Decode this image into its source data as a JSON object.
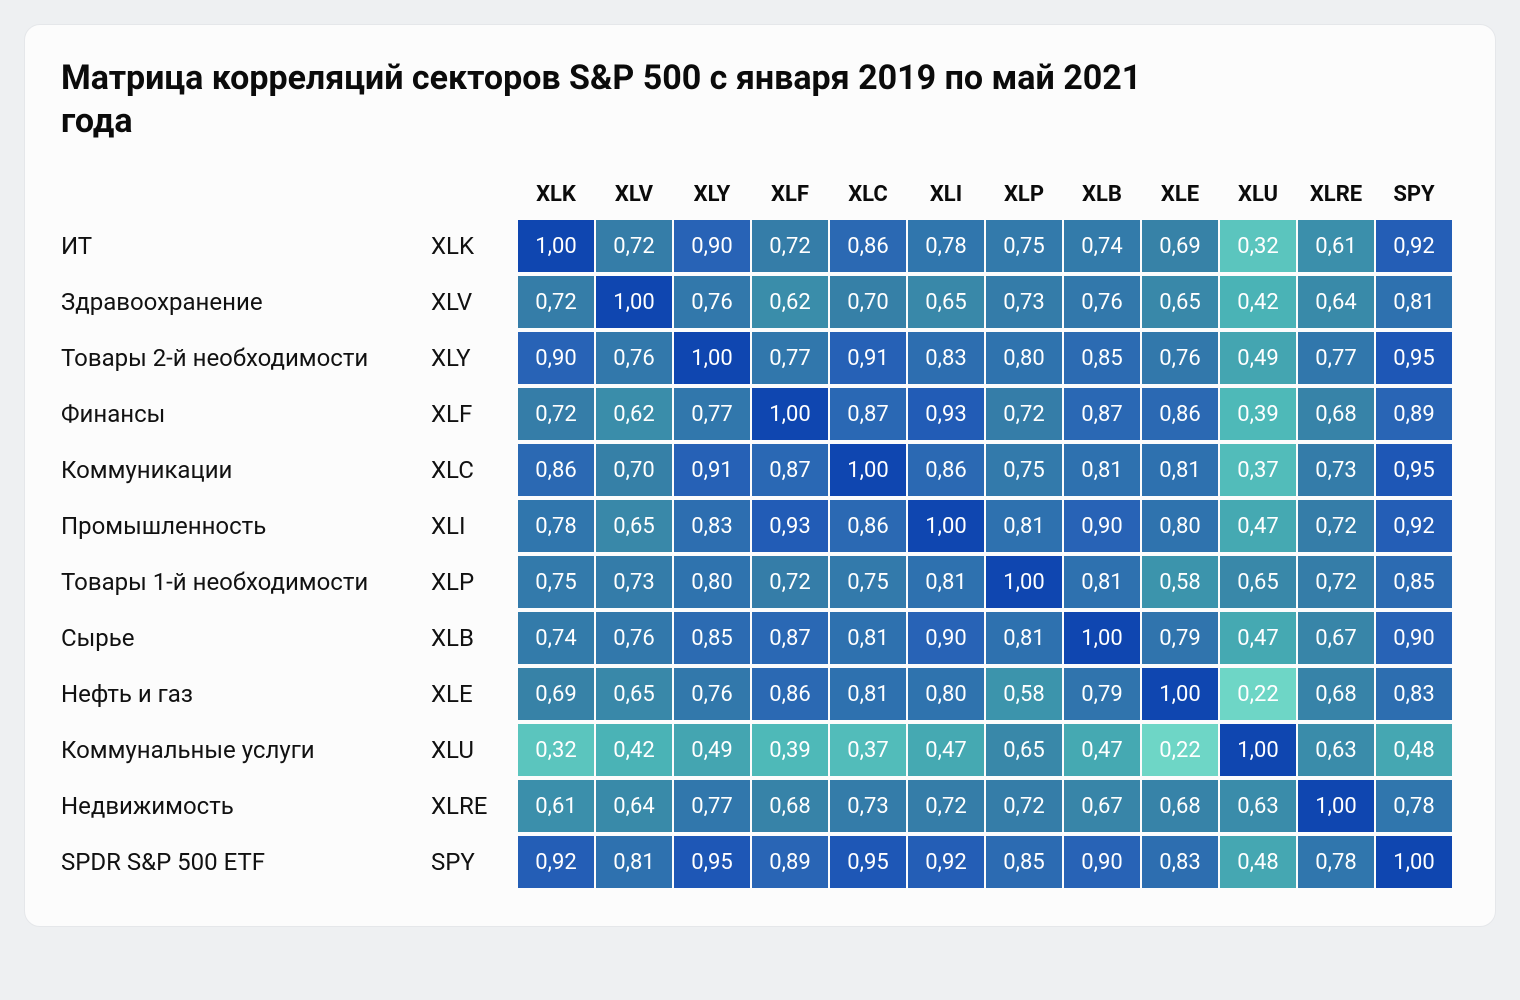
{
  "title": "Матрица корреляций секторов S&P 500 с января 2019 по май 2021 года",
  "heatmap": {
    "type": "heatmap",
    "cell_text_color": "#ffffff",
    "title_fontsize": 34,
    "header_fontsize": 22,
    "label_fontsize": 24,
    "cell_fontsize": 22,
    "background_color": "#fcfcfc",
    "card_border_color": "#e5e7ea",
    "value_decimal_separator": ",",
    "value_precision": 2,
    "color_scale": {
      "min": 0.0,
      "max": 1.0,
      "stops": [
        {
          "at": 0.0,
          "color": "#8be0d0"
        },
        {
          "at": 0.22,
          "color": "#6ed6c6"
        },
        {
          "at": 0.4,
          "color": "#4cb7b7"
        },
        {
          "at": 0.55,
          "color": "#3e99ad"
        },
        {
          "at": 0.7,
          "color": "#3680a7"
        },
        {
          "at": 0.8,
          "color": "#2f73ae"
        },
        {
          "at": 0.9,
          "color": "#2863b6"
        },
        {
          "at": 0.95,
          "color": "#1e57b6"
        },
        {
          "at": 1.0,
          "color": "#0f46b0"
        }
      ]
    },
    "columns": [
      "XLK",
      "XLV",
      "XLY",
      "XLF",
      "XLC",
      "XLI",
      "XLP",
      "XLB",
      "XLE",
      "XLU",
      "XLRE",
      "SPY"
    ],
    "rows": [
      {
        "name": "ИТ",
        "code": "XLK",
        "values": [
          1.0,
          0.72,
          0.9,
          0.72,
          0.86,
          0.78,
          0.75,
          0.74,
          0.69,
          0.32,
          0.61,
          0.92
        ]
      },
      {
        "name": "Здравоохранение",
        "code": "XLV",
        "values": [
          0.72,
          1.0,
          0.76,
          0.62,
          0.7,
          0.65,
          0.73,
          0.76,
          0.65,
          0.42,
          0.64,
          0.81
        ]
      },
      {
        "name": "Товары 2-й необходимости",
        "code": "XLY",
        "values": [
          0.9,
          0.76,
          1.0,
          0.77,
          0.91,
          0.83,
          0.8,
          0.85,
          0.76,
          0.49,
          0.77,
          0.95
        ]
      },
      {
        "name": "Финансы",
        "code": "XLF",
        "values": [
          0.72,
          0.62,
          0.77,
          1.0,
          0.87,
          0.93,
          0.72,
          0.87,
          0.86,
          0.39,
          0.68,
          0.89
        ]
      },
      {
        "name": "Коммуникации",
        "code": "XLC",
        "values": [
          0.86,
          0.7,
          0.91,
          0.87,
          1.0,
          0.86,
          0.75,
          0.81,
          0.81,
          0.37,
          0.73,
          0.95
        ]
      },
      {
        "name": "Промышленность",
        "code": "XLI",
        "values": [
          0.78,
          0.65,
          0.83,
          0.93,
          0.86,
          1.0,
          0.81,
          0.9,
          0.8,
          0.47,
          0.72,
          0.92
        ]
      },
      {
        "name": "Товары 1-й необходимости",
        "code": "XLP",
        "values": [
          0.75,
          0.73,
          0.8,
          0.72,
          0.75,
          0.81,
          1.0,
          0.81,
          0.58,
          0.65,
          0.72,
          0.85
        ]
      },
      {
        "name": "Сырье",
        "code": "XLB",
        "values": [
          0.74,
          0.76,
          0.85,
          0.87,
          0.81,
          0.9,
          0.81,
          1.0,
          0.79,
          0.47,
          0.67,
          0.9
        ]
      },
      {
        "name": "Нефть и газ",
        "code": "XLE",
        "values": [
          0.69,
          0.65,
          0.76,
          0.86,
          0.81,
          0.8,
          0.58,
          0.79,
          1.0,
          0.22,
          0.68,
          0.83
        ]
      },
      {
        "name": "Коммунальные услуги",
        "code": "XLU",
        "values": [
          0.32,
          0.42,
          0.49,
          0.39,
          0.37,
          0.47,
          0.65,
          0.47,
          0.22,
          1.0,
          0.63,
          0.48
        ]
      },
      {
        "name": "Недвижимость",
        "code": "XLRE",
        "values": [
          0.61,
          0.64,
          0.77,
          0.68,
          0.73,
          0.72,
          0.72,
          0.67,
          0.68,
          0.63,
          1.0,
          0.78
        ]
      },
      {
        "name": "SPDR S&P 500 ETF",
        "code": "SPY",
        "values": [
          0.92,
          0.81,
          0.95,
          0.89,
          0.95,
          0.92,
          0.85,
          0.9,
          0.83,
          0.48,
          0.78,
          1.0
        ]
      }
    ]
  }
}
